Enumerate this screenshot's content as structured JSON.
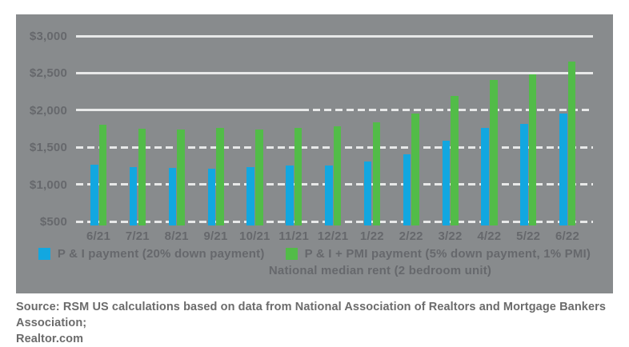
{
  "chart_data": {
    "type": "bar",
    "categories": [
      "6/21",
      "7/21",
      "8/21",
      "9/21",
      "10/21",
      "11/21",
      "12/21",
      "1/22",
      "2/22",
      "3/22",
      "4/22",
      "5/22",
      "6/22"
    ],
    "series": [
      {
        "name": "P & I payment (20% down payment)",
        "color": "#12A7E0",
        "values": [
          1260,
          1230,
          1220,
          1212,
          1235,
          1255,
          1250,
          1310,
          1410,
          1590,
          1760,
          1815,
          1960
        ]
      },
      {
        "name": "P & I + PMI payment (5% down payment, 1% PMI)",
        "color": "#52BC48",
        "values": [
          1800,
          1745,
          1740,
          1760,
          1740,
          1762,
          1780,
          1840,
          1960,
          2190,
          2410,
          2480,
          2660
        ]
      }
    ],
    "extra_legend": "National median rent (2 bedroom unit)",
    "title": "",
    "xlabel": "",
    "ylabel": "",
    "ylim": [
      500,
      3000
    ],
    "y_ticks": [
      {
        "value": 3000,
        "label": "$3,000",
        "grid": "solid"
      },
      {
        "value": 2500,
        "label": "$2,500",
        "grid": "solid"
      },
      {
        "value": 2000,
        "label": "$2,000",
        "grid": "mixed"
      },
      {
        "value": 1500,
        "label": "$1,500",
        "grid": "dashed"
      },
      {
        "value": 1000,
        "label": "$1,000",
        "grid": "dashed"
      },
      {
        "value": 500,
        "label": "$500",
        "grid": "dashed"
      }
    ],
    "legend_position": "bottom",
    "grid": true,
    "colors": {
      "panel_background": "#888B8D",
      "gridline": "#E8E9E9",
      "axis_text": "#66686C",
      "legend_text": "#66686C",
      "source_text": "#6B6B6B"
    }
  },
  "source": {
    "line1": "Source: RSM US calculations based on data from National Association of Realtors and Mortgage Bankers Association;",
    "line2": "Realtor.com"
  }
}
